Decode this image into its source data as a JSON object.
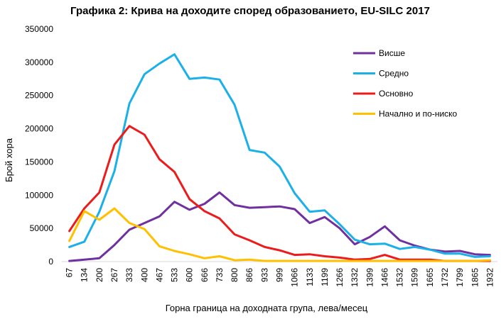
{
  "chart_data": {
    "type": "line",
    "title": "Графика 2: Крива на доходите според образованието, EU-SILC 2017",
    "xlabel": "Горна граница на доходната група, лева/месец",
    "ylabel": "Брой хора",
    "ylim": [
      0,
      350000
    ],
    "yticks": [
      "0",
      "50000",
      "100000",
      "150000",
      "200000",
      "250000",
      "300000",
      "350000"
    ],
    "categories": [
      "67",
      "134",
      "200",
      "267",
      "333",
      "400",
      "467",
      "533",
      "600",
      "666",
      "733",
      "800",
      "866",
      "933",
      "999",
      "1066",
      "1133",
      "1199",
      "1266",
      "1332",
      "1399",
      "1466",
      "1532",
      "1599",
      "1665",
      "1732",
      "1799",
      "1865",
      "1932"
    ],
    "grid": false,
    "legend_position": "top-right",
    "series": [
      {
        "name": "Висше",
        "color": "#7030a0",
        "values": [
          1000,
          3000,
          5000,
          25000,
          48000,
          58000,
          68000,
          90000,
          78000,
          87000,
          104000,
          85000,
          81000,
          82000,
          83000,
          79000,
          58000,
          67000,
          50000,
          26000,
          37000,
          53000,
          32000,
          24000,
          18000,
          15000,
          16000,
          11000,
          10000
        ]
      },
      {
        "name": "Средно",
        "color": "#1cb0e8",
        "values": [
          22000,
          30000,
          75000,
          136000,
          238000,
          282000,
          298000,
          312000,
          275000,
          277000,
          274000,
          236000,
          168000,
          164000,
          143000,
          103000,
          75000,
          77000,
          56000,
          33000,
          26000,
          27000,
          19000,
          22000,
          18000,
          12000,
          12000,
          7000,
          8000
        ]
      },
      {
        "name": "Основно",
        "color": "#ec1c1c",
        "values": [
          46000,
          80000,
          104000,
          176000,
          204000,
          191000,
          154000,
          135000,
          94000,
          76000,
          65000,
          41000,
          32000,
          22000,
          17000,
          10000,
          11000,
          8000,
          6000,
          3000,
          4000,
          10000,
          3000,
          3000,
          3000,
          1000,
          1000,
          1000,
          1000
        ]
      },
      {
        "name": "Начално и по-ниско",
        "color": "#ffc000",
        "values": [
          31000,
          76000,
          63000,
          80000,
          58000,
          49000,
          23000,
          16000,
          11000,
          5000,
          8000,
          2000,
          3000,
          1000,
          1000,
          1000,
          1000,
          1000,
          1000,
          1000,
          1000,
          1000,
          1000,
          1000,
          1000,
          1000,
          1000,
          1000,
          2000
        ]
      }
    ]
  }
}
